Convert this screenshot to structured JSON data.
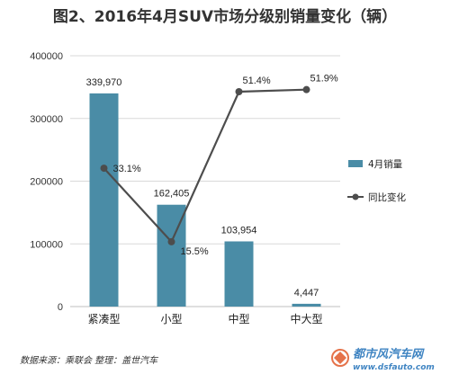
{
  "title": "图2、2016年4月SUV市场分级别销量变化（辆）",
  "source": "数据来源：乘联会 整理：盖世汽车",
  "watermark": {
    "name": "都市风汽车网",
    "url": "www.dsfauto.com"
  },
  "colors": {
    "bar": "#4a8ca6",
    "line": "#4d4d4d",
    "grid": "#d9d9d9",
    "axis": "#bfbfbf",
    "watermark": "#1e6fb8"
  },
  "chart_data": {
    "type": "bar",
    "categories": [
      "紧凑型",
      "小型",
      "中型",
      "中大型"
    ],
    "ylim": [
      0,
      400000
    ],
    "yticks": [
      0,
      100000,
      200000,
      300000,
      400000
    ],
    "ytick_labels": [
      "0",
      "100000",
      "200000",
      "300000",
      "400000"
    ],
    "series": [
      {
        "name": "4月销量",
        "type": "bar",
        "values": [
          339970,
          162405,
          103954,
          4447
        ],
        "labels": [
          "339,970",
          "162,405",
          "103,954",
          "4,447"
        ]
      },
      {
        "name": "同比变化",
        "type": "line",
        "values": [
          33.1,
          15.5,
          51.4,
          51.9
        ],
        "labels": [
          "33.1%",
          "15.5%",
          "51.4%",
          "51.9%"
        ],
        "secondary_range": [
          0,
          60
        ]
      }
    ],
    "legend": "right"
  }
}
